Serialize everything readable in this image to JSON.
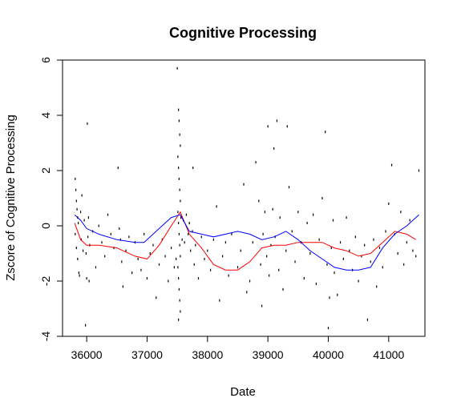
{
  "chart_data": {
    "type": "scatter",
    "title": "Cognitive Processing",
    "xlabel": "Date",
    "ylabel": "Zscore of Cognitive Processing",
    "xlim": [
      35600,
      41600
    ],
    "ylim": [
      -4,
      6
    ],
    "xticks": [
      36000,
      37000,
      38000,
      39000,
      40000,
      41000
    ],
    "yticks": [
      -4,
      -2,
      0,
      2,
      4,
      6
    ],
    "grid": false,
    "legend": "none",
    "colors": {
      "points": "#000000",
      "red_series": "#ff0000",
      "blue_series": "#0000ff"
    },
    "points": [
      [
        35810,
        1.7
      ],
      [
        35820,
        1.3
      ],
      [
        35830,
        0.9
      ],
      [
        35840,
        0.6
      ],
      [
        35850,
        0.3
      ],
      [
        35860,
        0.1
      ],
      [
        35810,
        -0.3
      ],
      [
        35830,
        -0.8
      ],
      [
        35850,
        -1.2
      ],
      [
        35870,
        -1.7
      ],
      [
        35880,
        -1.8
      ],
      [
        35900,
        0.5
      ],
      [
        35910,
        -0.5
      ],
      [
        35920,
        1.1
      ],
      [
        35940,
        -0.9
      ],
      [
        35960,
        0.2
      ],
      [
        35990,
        -1.0
      ],
      [
        36010,
        3.7
      ],
      [
        36000,
        -1.9
      ],
      [
        36020,
        -0.4
      ],
      [
        36030,
        0.3
      ],
      [
        36040,
        -2.0
      ],
      [
        35980,
        -3.6
      ],
      [
        36050,
        -0.7
      ],
      [
        36100,
        -0.2
      ],
      [
        36150,
        -1.5
      ],
      [
        36200,
        0.0
      ],
      [
        36250,
        -0.6
      ],
      [
        36300,
        -1.1
      ],
      [
        36350,
        0.4
      ],
      [
        36400,
        -0.3
      ],
      [
        36450,
        -0.8
      ],
      [
        36520,
        2.1
      ],
      [
        36540,
        -0.1
      ],
      [
        36560,
        -0.5
      ],
      [
        36580,
        -1.3
      ],
      [
        36600,
        -2.2
      ],
      [
        36650,
        -0.9
      ],
      [
        36700,
        -0.4
      ],
      [
        36750,
        -1.7
      ],
      [
        36800,
        -0.6
      ],
      [
        36850,
        -1.2
      ],
      [
        36900,
        -1.6
      ],
      [
        36950,
        -0.3
      ],
      [
        37000,
        -1.9
      ],
      [
        37050,
        -1.0
      ],
      [
        37100,
        -0.7
      ],
      [
        37150,
        -2.6
      ],
      [
        37200,
        -1.4
      ],
      [
        37250,
        -0.5
      ],
      [
        37300,
        -1.1
      ],
      [
        37350,
        -2.0
      ],
      [
        37400,
        -0.8
      ],
      [
        37450,
        -1.5
      ],
      [
        37480,
        -1.2
      ],
      [
        37500,
        5.7
      ],
      [
        37520,
        4.2
      ],
      [
        37530,
        3.8
      ],
      [
        37540,
        3.3
      ],
      [
        37550,
        2.9
      ],
      [
        37510,
        2.5
      ],
      [
        37520,
        2.1
      ],
      [
        37530,
        1.7
      ],
      [
        37540,
        1.3
      ],
      [
        37550,
        0.9
      ],
      [
        37510,
        0.5
      ],
      [
        37520,
        0.1
      ],
      [
        37530,
        -0.3
      ],
      [
        37540,
        -0.7
      ],
      [
        37550,
        -1.1
      ],
      [
        37510,
        -1.5
      ],
      [
        37520,
        -1.9
      ],
      [
        37530,
        -2.3
      ],
      [
        37540,
        -2.7
      ],
      [
        37550,
        -3.1
      ],
      [
        37520,
        -3.4
      ],
      [
        37560,
        0.3
      ],
      [
        37580,
        -0.5
      ],
      [
        37600,
        0.2
      ],
      [
        37620,
        -0.6
      ],
      [
        37650,
        0.4
      ],
      [
        37680,
        -0.3
      ],
      [
        37700,
        0.1
      ],
      [
        37720,
        -0.9
      ],
      [
        37750,
        -0.2
      ],
      [
        37760,
        2.1
      ],
      [
        37780,
        -1.4
      ],
      [
        37800,
        -0.7
      ],
      [
        37850,
        -1.9
      ],
      [
        37900,
        -0.4
      ],
      [
        37950,
        -1.2
      ],
      [
        38000,
        -0.9
      ],
      [
        38050,
        -1.6
      ],
      [
        38100,
        -0.5
      ],
      [
        38150,
        0.7
      ],
      [
        38200,
        -2.7
      ],
      [
        38250,
        -1.1
      ],
      [
        38300,
        -0.6
      ],
      [
        38350,
        -1.8
      ],
      [
        38400,
        -0.3
      ],
      [
        38500,
        -1.5
      ],
      [
        38550,
        -0.9
      ],
      [
        38600,
        1.5
      ],
      [
        38650,
        -2.4
      ],
      [
        38700,
        -2.0
      ],
      [
        38750,
        -0.6
      ],
      [
        38800,
        2.3
      ],
      [
        38850,
        0.9
      ],
      [
        38880,
        -1.4
      ],
      [
        38900,
        -2.9
      ],
      [
        38920,
        -0.3
      ],
      [
        38950,
        0.5
      ],
      [
        38980,
        -1.1
      ],
      [
        39000,
        3.6
      ],
      [
        39020,
        -1.8
      ],
      [
        39050,
        -0.7
      ],
      [
        39080,
        0.6
      ],
      [
        39100,
        2.8
      ],
      [
        39120,
        -0.4
      ],
      [
        39150,
        3.8
      ],
      [
        39180,
        -1.6
      ],
      [
        39200,
        0.3
      ],
      [
        39250,
        -2.3
      ],
      [
        39300,
        -0.9
      ],
      [
        39320,
        3.6
      ],
      [
        39350,
        1.4
      ],
      [
        39400,
        -0.2
      ],
      [
        39450,
        -1.3
      ],
      [
        39500,
        0.5
      ],
      [
        39550,
        -0.6
      ],
      [
        39600,
        -1.9
      ],
      [
        39650,
        0.1
      ],
      [
        39700,
        -1.0
      ],
      [
        39750,
        0.4
      ],
      [
        39800,
        -2.1
      ],
      [
        39850,
        -0.5
      ],
      [
        39900,
        1.0
      ],
      [
        39950,
        3.4
      ],
      [
        39980,
        -1.4
      ],
      [
        40000,
        -3.7
      ],
      [
        40020,
        -2.6
      ],
      [
        40050,
        -0.8
      ],
      [
        40080,
        0.2
      ],
      [
        40100,
        -1.7
      ],
      [
        40150,
        -2.5
      ],
      [
        40200,
        -0.6
      ],
      [
        40250,
        -1.2
      ],
      [
        40300,
        0.3
      ],
      [
        40350,
        -0.9
      ],
      [
        40400,
        -1.6
      ],
      [
        40450,
        -0.4
      ],
      [
        40500,
        -2.0
      ],
      [
        40550,
        -1.1
      ],
      [
        40600,
        -0.7
      ],
      [
        40650,
        -3.4
      ],
      [
        40700,
        -1.3
      ],
      [
        40750,
        -0.5
      ],
      [
        40800,
        -2.2
      ],
      [
        40850,
        -0.8
      ],
      [
        40900,
        -1.5
      ],
      [
        40950,
        -0.2
      ],
      [
        41000,
        0.8
      ],
      [
        41050,
        2.2
      ],
      [
        41100,
        -0.3
      ],
      [
        41150,
        -1.0
      ],
      [
        41200,
        0.5
      ],
      [
        41250,
        -1.4
      ],
      [
        41300,
        -0.6
      ],
      [
        41350,
        0.2
      ],
      [
        41400,
        -0.9
      ],
      [
        41450,
        -1.1
      ],
      [
        41500,
        2.0
      ]
    ],
    "series": [
      {
        "color": "#ff0000",
        "x": [
          35800,
          35900,
          36000,
          36200,
          36500,
          36800,
          37000,
          37200,
          37400,
          37550,
          37700,
          37900,
          38100,
          38300,
          38500,
          38700,
          38900,
          39100,
          39300,
          39500,
          39700,
          39900,
          40100,
          40300,
          40500,
          40700,
          40900,
          41100,
          41300,
          41450
        ],
        "y": [
          0.1,
          -0.5,
          -0.7,
          -0.7,
          -0.8,
          -1.1,
          -1.2,
          -0.7,
          0.0,
          0.5,
          -0.3,
          -0.8,
          -1.4,
          -1.6,
          -1.6,
          -1.3,
          -0.8,
          -0.7,
          -0.7,
          -0.6,
          -0.6,
          -0.6,
          -0.8,
          -0.9,
          -1.1,
          -1.0,
          -0.6,
          -0.2,
          -0.3,
          -0.5
        ]
      },
      {
        "color": "#0000ff",
        "x": [
          35800,
          35900,
          36000,
          36200,
          36500,
          36800,
          36950,
          37200,
          37400,
          37550,
          37700,
          37900,
          38100,
          38300,
          38500,
          38700,
          38900,
          39100,
          39300,
          39500,
          39700,
          39900,
          40100,
          40300,
          40500,
          40700,
          40900,
          41100,
          41300,
          41500
        ],
        "y": [
          0.4,
          0.2,
          -0.1,
          -0.3,
          -0.5,
          -0.6,
          -0.6,
          -0.1,
          0.3,
          0.4,
          -0.2,
          -0.3,
          -0.4,
          -0.3,
          -0.2,
          -0.3,
          -0.5,
          -0.4,
          -0.2,
          -0.5,
          -0.9,
          -1.2,
          -1.5,
          -1.6,
          -1.6,
          -1.5,
          -0.8,
          -0.3,
          0.0,
          0.4
        ]
      }
    ]
  }
}
